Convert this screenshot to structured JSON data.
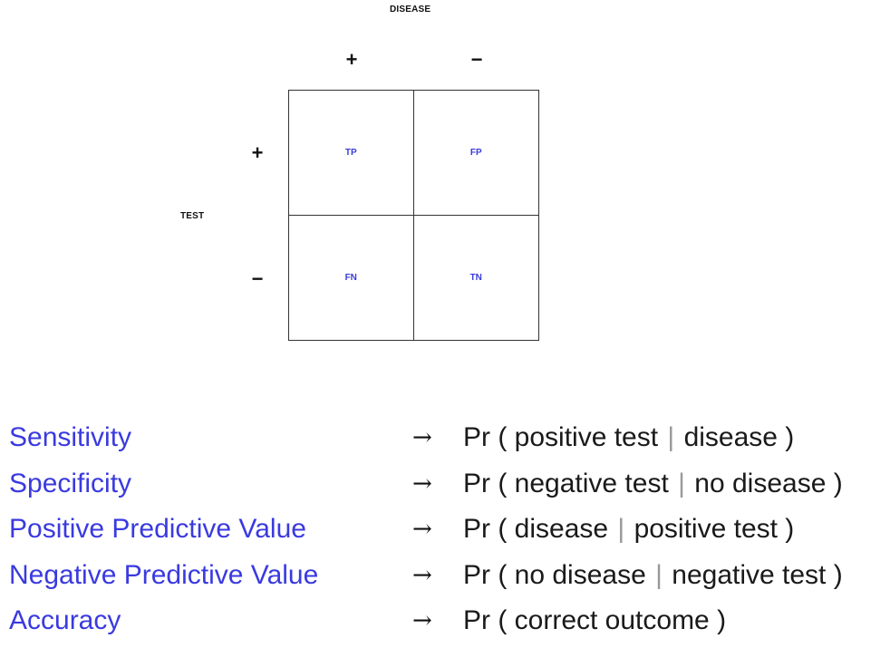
{
  "colors": {
    "cell_label": "#3b3bdb",
    "term": "#3a3ae0",
    "text": "#111111",
    "grid_line": "#333333",
    "bar": "#999999"
  },
  "matrix": {
    "column_axis_title": "DISEASE",
    "row_axis_title": "TEST",
    "column_signs": [
      "+",
      "−"
    ],
    "row_signs": [
      "+",
      "−"
    ],
    "cells": [
      [
        "TP",
        "FP"
      ],
      [
        "FN",
        "TN"
      ]
    ]
  },
  "definitions": [
    {
      "term": "Sensitivity",
      "arrow": "→",
      "prefix": "Pr ( positive test",
      "bar": "|",
      "suffix": "disease )"
    },
    {
      "term": "Specificity",
      "arrow": "→",
      "prefix": "Pr ( negative test",
      "bar": "|",
      "suffix": "no disease )"
    },
    {
      "term": "Positive Predictive Value",
      "arrow": "→",
      "prefix": "Pr ( disease",
      "bar": "|",
      "suffix": "positive test )"
    },
    {
      "term": "Negative Predictive Value",
      "arrow": "→",
      "prefix": "Pr ( no disease",
      "bar": "|",
      "suffix": "negative test )"
    },
    {
      "term": "Accuracy",
      "arrow": "→",
      "prefix": "Pr ( correct outcome )",
      "bar": "",
      "suffix": ""
    }
  ]
}
